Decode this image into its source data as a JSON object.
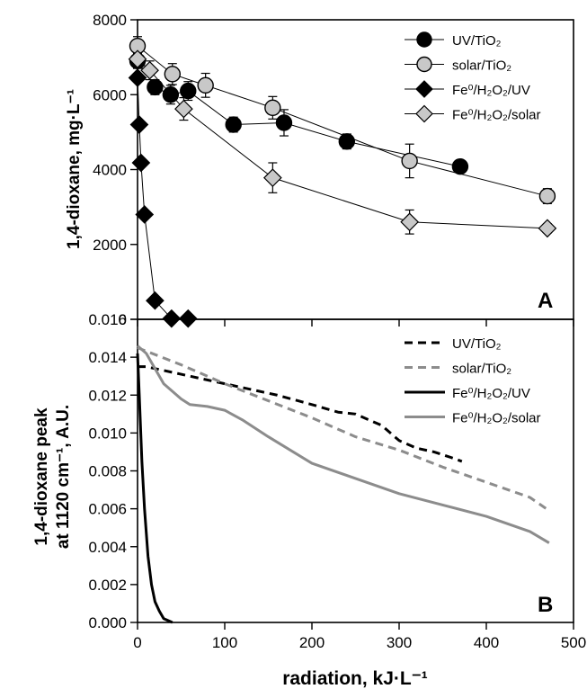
{
  "figure": {
    "shared_xlabel": "radiation, kJ·L⁻¹",
    "x_ticks": [
      "0",
      "100",
      "200",
      "300",
      "400",
      "500"
    ]
  },
  "chart_data": [
    {
      "type": "scatter",
      "panel": "A",
      "ylabel": "1,4-dioxane, mg·L⁻¹",
      "xlabel": "radiation, kJ·L⁻¹",
      "xlim": [
        0,
        500
      ],
      "ylim": [
        0,
        8000
      ],
      "y_ticks": [
        "0",
        "2000",
        "4000",
        "6000",
        "8000"
      ],
      "grid": false,
      "legend_position": "top-right",
      "lines_connecting_points": true,
      "series": [
        {
          "name": "UV/TiO₂",
          "marker": "circle",
          "color": "#000000",
          "stroke": "#000000",
          "x": [
            0,
            20,
            38,
            58,
            110,
            168,
            240,
            370
          ],
          "y": [
            6900,
            6200,
            6000,
            6100,
            5200,
            5250,
            4750,
            4080
          ],
          "err": [
            200,
            200,
            250,
            250,
            200,
            350,
            200,
            150
          ]
        },
        {
          "name": "solar/TiO₂",
          "marker": "circle",
          "color": "#c8c8c8",
          "stroke": "#000000",
          "x": [
            0,
            40,
            78,
            155,
            312,
            470
          ],
          "y": [
            7300,
            6550,
            6250,
            5650,
            4230,
            3290
          ],
          "err": [
            250,
            280,
            320,
            300,
            450,
            200
          ]
        },
        {
          "name": "Fe⁰/H₂O₂/UV",
          "marker": "diamond",
          "color": "#000000",
          "stroke": "#000000",
          "x": [
            0,
            2,
            4,
            8,
            20,
            39,
            58
          ],
          "y": [
            6450,
            5200,
            4180,
            2800,
            500,
            20,
            20
          ],
          "err": [
            0,
            0,
            0,
            0,
            0,
            0,
            0
          ]
        },
        {
          "name": "Fe⁰/H₂O₂/solar",
          "marker": "diamond",
          "color": "#c8c8c8",
          "stroke": "#000000",
          "x": [
            0,
            14,
            53,
            155,
            312,
            470
          ],
          "y": [
            6950,
            6650,
            5620,
            3780,
            2600,
            2430
          ],
          "err": [
            200,
            250,
            300,
            400,
            320,
            120
          ]
        }
      ]
    },
    {
      "type": "line",
      "panel": "B",
      "ylabel_line1": "1,4-dioxane peak",
      "ylabel_line2": "at 1120 cm⁻¹, A.U.",
      "xlabel": "radiation, kJ·L⁻¹",
      "xlim": [
        0,
        500
      ],
      "ylim": [
        0,
        0.016
      ],
      "y_ticks": [
        "0.000",
        "0.002",
        "0.004",
        "0.006",
        "0.008",
        "0.010",
        "0.012",
        "0.014",
        "0.016"
      ],
      "grid": false,
      "legend_position": "top-right",
      "series": [
        {
          "name": "UV/TiO₂",
          "color": "#000000",
          "dash": "9,6",
          "x": [
            0,
            10,
            30,
            50,
            80,
            100,
            130,
            160,
            200,
            230,
            250,
            280,
            300,
            320,
            340,
            360,
            372
          ],
          "y": [
            0.0135,
            0.0135,
            0.0133,
            0.0131,
            0.0128,
            0.0126,
            0.0123,
            0.012,
            0.0115,
            0.0111,
            0.011,
            0.0104,
            0.0096,
            0.0092,
            0.009,
            0.0087,
            0.0085
          ]
        },
        {
          "name": "solar/TiO₂",
          "color": "#8c8c8c",
          "dash": "9,6",
          "x": [
            0,
            50,
            100,
            150,
            200,
            250,
            300,
            350,
            400,
            450,
            472
          ],
          "y": [
            0.0145,
            0.0136,
            0.0126,
            0.0117,
            0.0108,
            0.0098,
            0.0091,
            0.0082,
            0.0074,
            0.0066,
            0.0059
          ]
        },
        {
          "name": "Fe⁰/H₂O₂/UV",
          "color": "#000000",
          "dash": "",
          "x": [
            0,
            2,
            5,
            8,
            12,
            16,
            20,
            25,
            30,
            35,
            40
          ],
          "y": [
            0.0142,
            0.012,
            0.0085,
            0.006,
            0.0035,
            0.002,
            0.0011,
            0.0006,
            0.0002,
            0.0001,
            0.0
          ]
        },
        {
          "name": "Fe⁰/H₂O₂/solar",
          "color": "#8c8c8c",
          "dash": "",
          "x": [
            0,
            10,
            30,
            50,
            60,
            80,
            100,
            120,
            150,
            200,
            250,
            300,
            350,
            400,
            450,
            472
          ],
          "y": [
            0.0146,
            0.0142,
            0.0126,
            0.0118,
            0.0115,
            0.0114,
            0.0112,
            0.0107,
            0.0098,
            0.0084,
            0.0076,
            0.0068,
            0.0062,
            0.0056,
            0.0048,
            0.0042
          ]
        }
      ]
    }
  ]
}
